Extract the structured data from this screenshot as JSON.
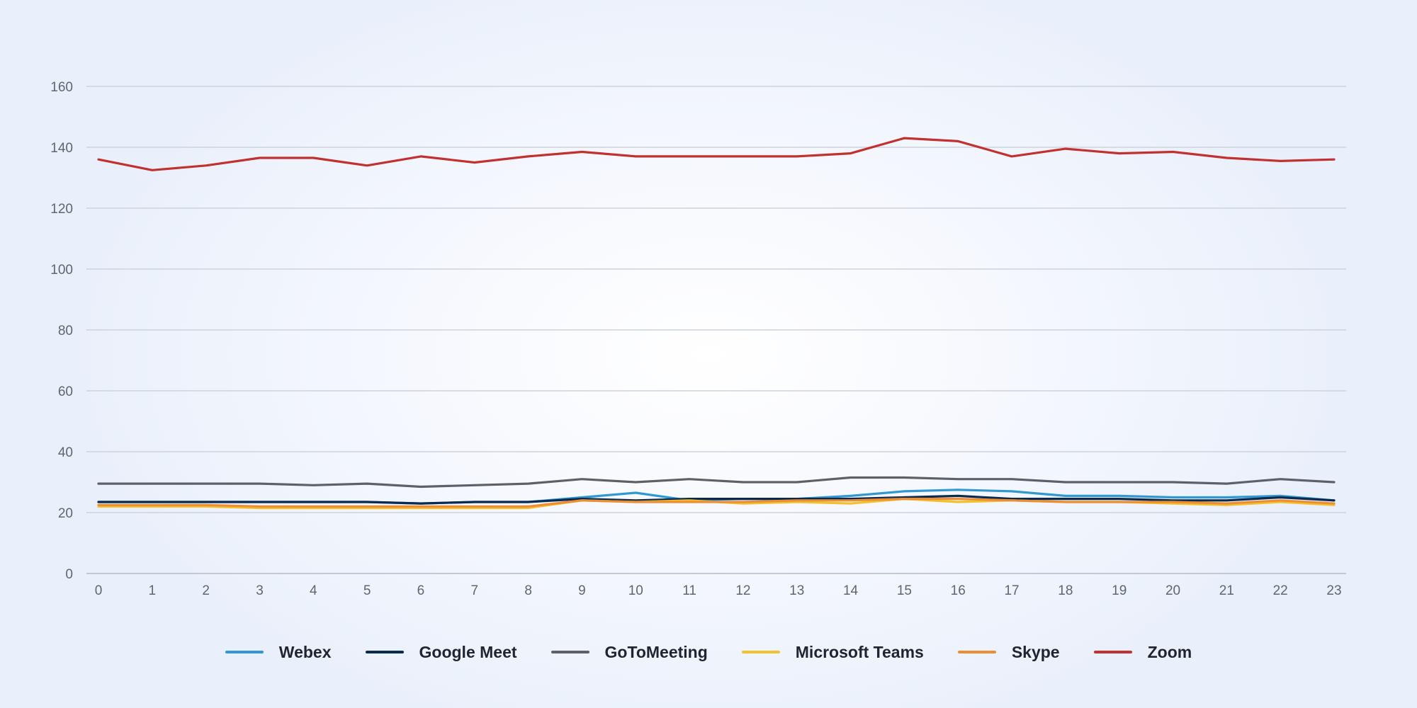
{
  "chart_data": {
    "type": "line",
    "title": "",
    "xlabel": "",
    "ylabel": "",
    "x": [
      0,
      1,
      2,
      3,
      4,
      5,
      6,
      7,
      8,
      9,
      10,
      11,
      12,
      13,
      14,
      15,
      16,
      17,
      18,
      19,
      20,
      21,
      22,
      23
    ],
    "x_tick_labels": [
      "0",
      "1",
      "2",
      "3",
      "4",
      "5",
      "6",
      "7",
      "8",
      "9",
      "10",
      "11",
      "12",
      "13",
      "14",
      "15",
      "16",
      "17",
      "18",
      "19",
      "20",
      "21",
      "22",
      "23"
    ],
    "y_ticks": [
      0,
      20,
      40,
      60,
      80,
      100,
      120,
      140,
      160
    ],
    "y_tick_labels": [
      "0",
      "20",
      "40",
      "60",
      "80",
      "100",
      "120",
      "140",
      "160"
    ],
    "ylim": [
      0,
      160
    ],
    "grid": "horizontal",
    "legend_position": "bottom",
    "series": [
      {
        "name": "Webex",
        "color": "#3398d0",
        "values": [
          23.5,
          23.5,
          23.5,
          23.5,
          23.5,
          23.5,
          23,
          23.5,
          23.5,
          25,
          26.5,
          24,
          24.5,
          24.5,
          25.5,
          27,
          27.5,
          27,
          25.5,
          25.5,
          25,
          25,
          25.5,
          24
        ]
      },
      {
        "name": "Google Meet",
        "color": "#0b2a4f",
        "values": [
          23.5,
          23.5,
          23.5,
          23.5,
          23.5,
          23.5,
          23,
          23.5,
          23.5,
          24.5,
          24,
          24.5,
          24.5,
          24.5,
          24.5,
          25,
          25.5,
          24.5,
          24.5,
          24.5,
          24,
          24,
          25,
          24
        ]
      },
      {
        "name": "GoToMeeting",
        "color": "#5d6167",
        "values": [
          29.5,
          29.5,
          29.5,
          29.5,
          29,
          29.5,
          28.5,
          29,
          29.5,
          31,
          30,
          31,
          30,
          30,
          31.5,
          31.5,
          31,
          31,
          30,
          30,
          30,
          29.5,
          31,
          30
        ]
      },
      {
        "name": "Microsoft Teams",
        "color": "#f2c22e",
        "values": [
          22,
          22,
          22,
          21.5,
          21.5,
          21.5,
          21.5,
          21.5,
          21.5,
          24,
          23.5,
          24,
          23,
          23.5,
          23,
          24.5,
          23.5,
          24,
          23.5,
          23.5,
          23,
          22.5,
          23.5,
          22.5
        ]
      },
      {
        "name": "Skype",
        "color": "#ee8e34",
        "values": [
          22.5,
          22.5,
          22.5,
          22,
          22,
          22,
          22,
          22,
          22,
          24,
          23.5,
          23.5,
          23.5,
          24,
          24,
          24.5,
          24.5,
          24,
          23.5,
          23.5,
          23.5,
          23,
          24,
          23
        ]
      },
      {
        "name": "Zoom",
        "color": "#c0312f",
        "values": [
          136,
          132.5,
          134,
          136.5,
          136.5,
          134,
          137,
          135,
          137,
          138.5,
          137,
          137,
          137,
          137,
          138,
          143,
          142,
          137,
          139.5,
          138,
          138.5,
          136.5,
          135.5,
          136
        ]
      }
    ]
  }
}
